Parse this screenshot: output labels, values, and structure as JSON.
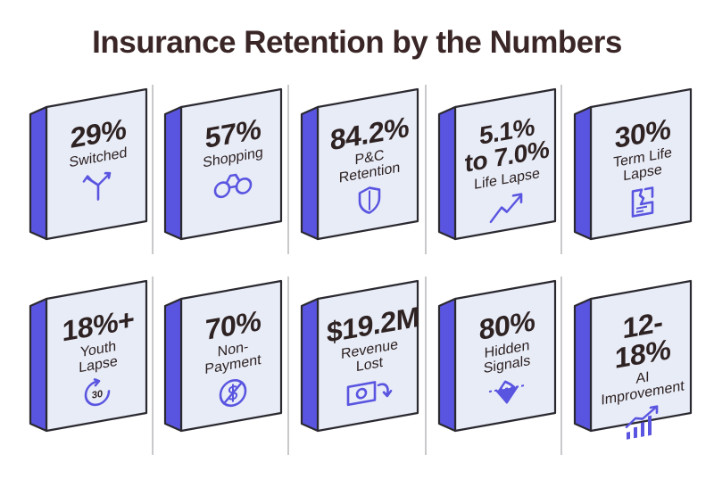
{
  "title": "Insurance Retention by the Numbers",
  "colors": {
    "front": "#e8ecf7",
    "side": "#5a55e0",
    "edge": "#2b2930",
    "text": "#2e2222",
    "title": "#3a2626",
    "icon": "#5a55e0"
  },
  "tiles": [
    {
      "value": "29%",
      "label": "Switched",
      "icon": "split-arrows-icon"
    },
    {
      "value": "57%",
      "label": "Shopping",
      "icon": "binoculars-icon"
    },
    {
      "value": "84.2%",
      "label": "P&C Retention",
      "label_lines": [
        "P&C",
        "Retention"
      ],
      "icon": "shield-icon"
    },
    {
      "value": "5.1% to 7.0%",
      "value_lines": [
        "5.1%",
        "to 7.0%"
      ],
      "label": "Life Lapse",
      "icon": "trend-up-arrow-icon"
    },
    {
      "value": "30%",
      "label": "Term Life Lapse",
      "label_lines": [
        "Term Life",
        "Lapse"
      ],
      "icon": "torn-document-icon"
    },
    {
      "value": "18%+",
      "label": "Youth Lapse",
      "label_lines": [
        "Youth",
        "Lapse"
      ],
      "icon": "thirty-timer-icon",
      "icon_text": "30"
    },
    {
      "value": "70%",
      "label": "Non-Payment",
      "icon": "no-dollar-icon"
    },
    {
      "value": "$19.2M",
      "label": "Revenue Lost",
      "label_lines": [
        "Revenue",
        "Lost"
      ],
      "icon": "cash-loss-icon"
    },
    {
      "value": "80%",
      "label": "Hidden Signals",
      "label_lines": [
        "Hidden",
        "Signals"
      ],
      "icon": "iceberg-icon"
    },
    {
      "value": "12-18%",
      "label": "AI Improvement",
      "label_lines": [
        "AI",
        "Improvement"
      ],
      "icon": "bar-growth-icon"
    }
  ]
}
